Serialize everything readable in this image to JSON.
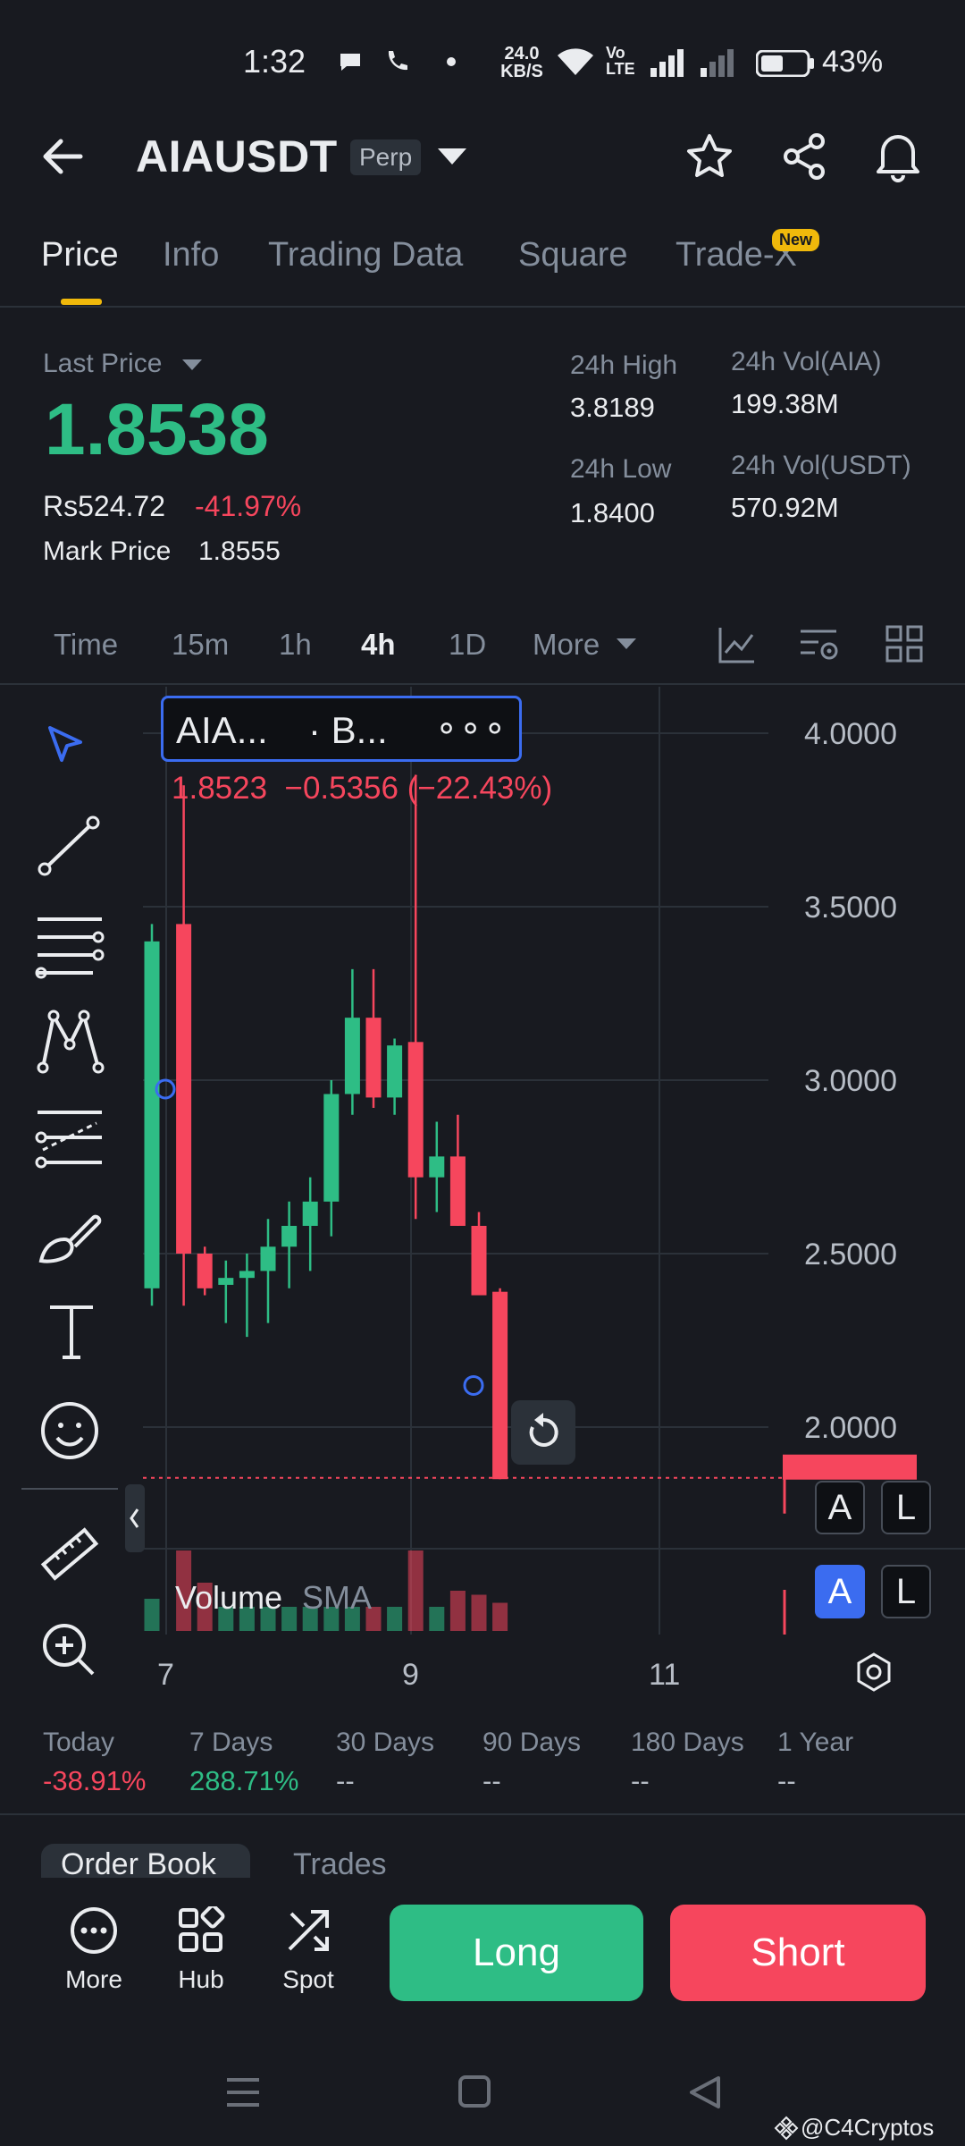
{
  "status_bar": {
    "time": "1:32",
    "net_speed": "24.0 KB/S",
    "volte": "Vo LTE",
    "battery": "43%"
  },
  "header": {
    "symbol": "AIAUSDT",
    "contract_type": "Perp"
  },
  "tabs": [
    {
      "label": "Price",
      "active": true
    },
    {
      "label": "Info"
    },
    {
      "label": "Trading Data"
    },
    {
      "label": "Square"
    },
    {
      "label": "Trade-X",
      "badge": "New"
    }
  ],
  "price": {
    "last_price_label": "Last Price",
    "last_price": "1.8538",
    "local_price": "Rs524.72",
    "change_pct": "-41.97%",
    "mark_price_label": "Mark Price",
    "mark_price": "1.8555"
  },
  "stats": {
    "high_label": "24h High",
    "high": "3.8189",
    "low_label": "24h Low",
    "low": "1.8400",
    "vol_base_label": "24h Vol(AIA)",
    "vol_base": "199.38M",
    "vol_quote_label": "24h Vol(USDT)",
    "vol_quote": "570.92M"
  },
  "timeframes": [
    "Time",
    "15m",
    "1h",
    "4h",
    "1D",
    "More"
  ],
  "active_timeframe": "4h",
  "chart": {
    "legend_symbol": "AIA...",
    "legend_source": "· B...",
    "legend_more": "∘∘∘",
    "ohlc_line": "1.8523  −0.5356 (−22.43%)",
    "volume_label": "Volume",
    "volume_indicator": "SMA",
    "scale_a": "A",
    "scale_l": "L",
    "colors": {
      "up": "#2ebd85",
      "down": "#f6465d",
      "background": "#181a20",
      "grid": "#2b3139"
    }
  },
  "chart_data": {
    "type": "candlestick",
    "y_ticks": [
      "4.0000",
      "3.5000",
      "3.0000",
      "2.5000",
      "2.0000"
    ],
    "ylim": [
      1.6,
      4.1
    ],
    "x_ticks": [
      "7",
      "9",
      "11"
    ],
    "last_price_line": 1.8538,
    "candles": [
      {
        "o": 2.4,
        "h": 3.45,
        "l": 2.35,
        "c": 3.4
      },
      {
        "o": 3.45,
        "h": 3.85,
        "l": 2.35,
        "c": 2.5
      },
      {
        "o": 2.5,
        "h": 2.52,
        "l": 2.38,
        "c": 2.4
      },
      {
        "o": 2.41,
        "h": 2.48,
        "l": 2.3,
        "c": 2.43
      },
      {
        "o": 2.43,
        "h": 2.5,
        "l": 2.26,
        "c": 2.45
      },
      {
        "o": 2.45,
        "h": 2.6,
        "l": 2.3,
        "c": 2.52
      },
      {
        "o": 2.52,
        "h": 2.65,
        "l": 2.4,
        "c": 2.58
      },
      {
        "o": 2.58,
        "h": 2.72,
        "l": 2.45,
        "c": 2.65
      },
      {
        "o": 2.65,
        "h": 3.0,
        "l": 2.55,
        "c": 2.96
      },
      {
        "o": 2.96,
        "h": 3.32,
        "l": 2.9,
        "c": 3.18
      },
      {
        "o": 3.18,
        "h": 3.32,
        "l": 2.92,
        "c": 2.95
      },
      {
        "o": 2.95,
        "h": 3.12,
        "l": 2.9,
        "c": 3.1
      },
      {
        "o": 3.11,
        "h": 3.88,
        "l": 2.6,
        "c": 2.72
      },
      {
        "o": 2.72,
        "h": 2.88,
        "l": 2.62,
        "c": 2.78
      },
      {
        "o": 2.78,
        "h": 2.9,
        "l": 2.58,
        "c": 2.58
      },
      {
        "o": 2.58,
        "h": 2.62,
        "l": 2.38,
        "c": 2.38
      },
      {
        "o": 2.39,
        "h": 2.4,
        "l": 1.85,
        "c": 1.85
      }
    ],
    "volume": [
      0.4,
      1.0,
      0.6,
      0.3,
      0.3,
      0.3,
      0.3,
      0.3,
      0.3,
      0.3,
      0.3,
      0.3,
      1.0,
      0.3,
      0.5,
      0.45,
      0.35
    ]
  },
  "ranges": [
    {
      "label": "Today",
      "value": "-38.91%",
      "tone": "red"
    },
    {
      "label": "7 Days",
      "value": "288.71%",
      "tone": "green"
    },
    {
      "label": "30 Days",
      "value": "--",
      "tone": "muted"
    },
    {
      "label": "90 Days",
      "value": "--",
      "tone": "muted"
    },
    {
      "label": "180 Days",
      "value": "--",
      "tone": "muted"
    },
    {
      "label": "1 Year",
      "value": "--",
      "tone": "muted"
    }
  ],
  "orderbook_tabs": [
    "Order Book",
    "Trades"
  ],
  "bottom": {
    "more": "More",
    "hub": "Hub",
    "spot": "Spot",
    "long": "Long",
    "short": "Short"
  },
  "watermark": "@C4Cryptos"
}
